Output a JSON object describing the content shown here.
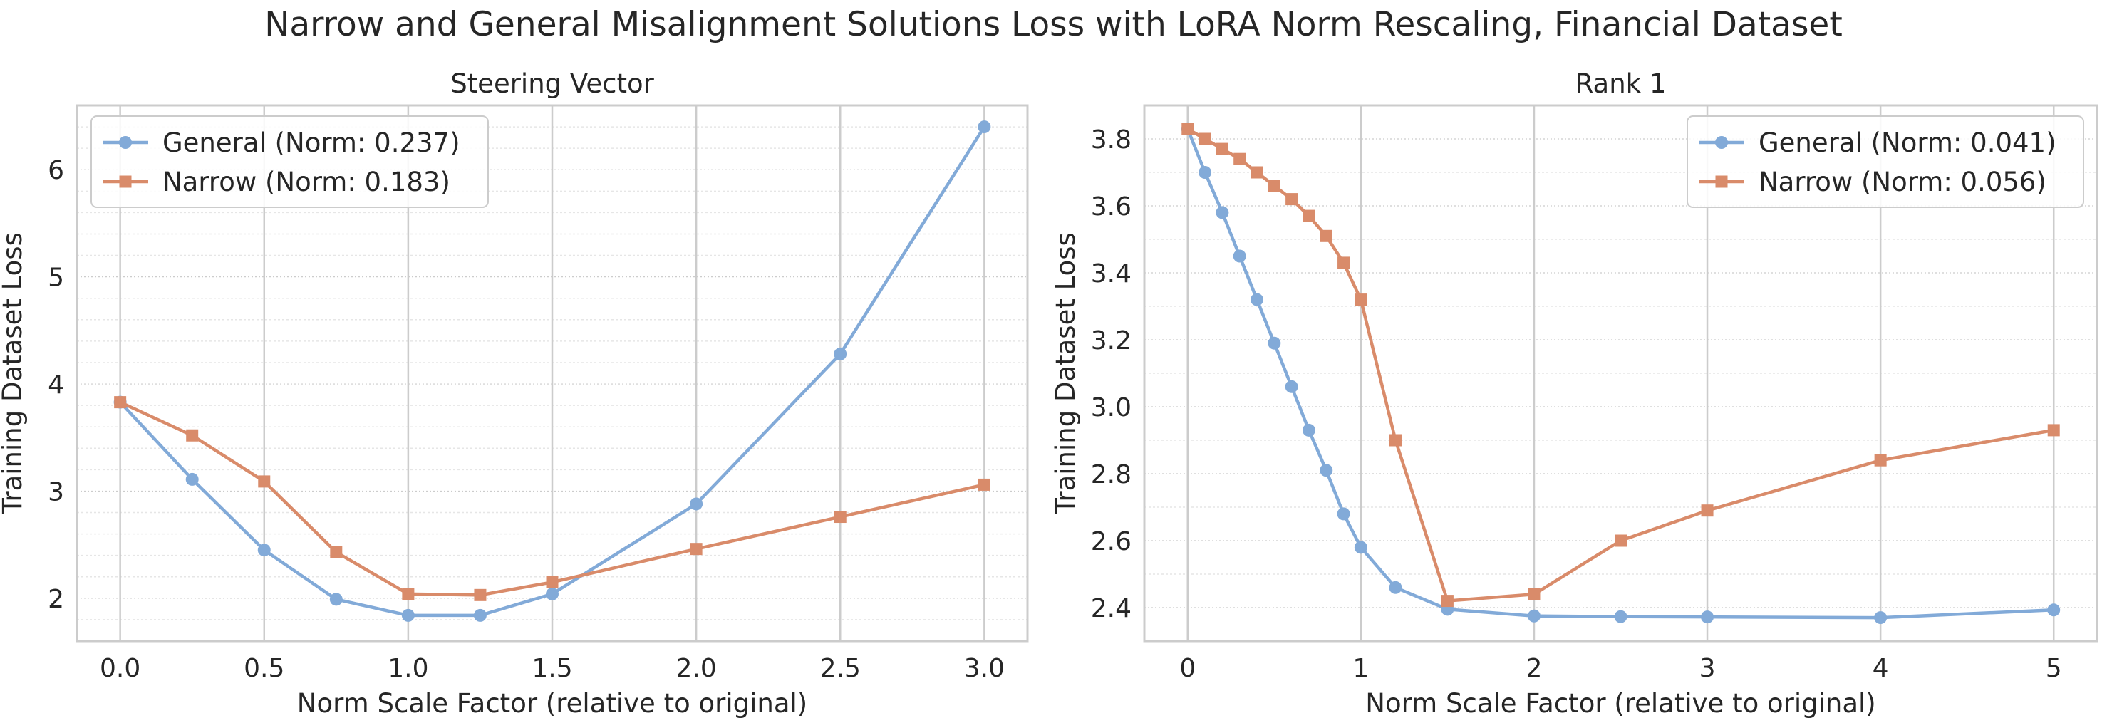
{
  "figure": {
    "title": "Narrow and General Misalignment Solutions Loss with LoRA Norm Rescaling, Financial Dataset"
  },
  "colors": {
    "general": "#82aad8",
    "narrow": "#d98b6a",
    "grid_major": "#cccccc",
    "grid_minor": "#e6e6e6",
    "frame": "#cccccc",
    "text": "#262626"
  },
  "chart_data": [
    {
      "type": "line",
      "title": "Steering Vector",
      "xlabel": "Norm Scale Factor (relative to original)",
      "ylabel": "Training Dataset Loss",
      "xlim": [
        -0.15,
        3.15
      ],
      "ylim": [
        1.6,
        6.6
      ],
      "xticks": [
        0.0,
        0.5,
        1.0,
        1.5,
        2.0,
        2.5,
        3.0
      ],
      "xtick_labels": [
        "0.0",
        "0.5",
        "1.0",
        "1.5",
        "2.0",
        "2.5",
        "3.0"
      ],
      "yticks": [
        2,
        3,
        4,
        5,
        6
      ],
      "ytick_labels": [
        "2",
        "3",
        "4",
        "5",
        "6"
      ],
      "ygrid_minor": [
        1.8,
        2.2,
        2.4,
        2.6,
        2.8,
        3.2,
        3.4,
        3.6,
        3.8,
        4.2,
        4.4,
        4.6,
        4.8,
        5.2,
        5.4,
        5.6,
        5.8,
        6.2,
        6.4
      ],
      "legend_position": "top-left",
      "series": [
        {
          "name": "General (Norm: 0.237)",
          "key": "general",
          "marker": "circle",
          "x": [
            0.0,
            0.25,
            0.5,
            0.75,
            1.0,
            1.25,
            1.5,
            2.0,
            2.5,
            3.0
          ],
          "y": [
            3.83,
            3.11,
            2.45,
            1.99,
            1.84,
            1.84,
            2.04,
            2.88,
            4.28,
            6.4
          ]
        },
        {
          "name": "Narrow (Norm: 0.183)",
          "key": "narrow",
          "marker": "square",
          "x": [
            0.0,
            0.25,
            0.5,
            0.75,
            1.0,
            1.25,
            1.5,
            2.0,
            2.5,
            3.0
          ],
          "y": [
            3.83,
            3.52,
            3.09,
            2.43,
            2.04,
            2.03,
            2.15,
            2.46,
            2.76,
            3.06
          ]
        }
      ]
    },
    {
      "type": "line",
      "title": "Rank 1",
      "xlabel": "Norm Scale Factor (relative to original)",
      "ylabel": "Training Dataset Loss",
      "xlim": [
        -0.25,
        5.25
      ],
      "ylim": [
        2.3,
        3.9
      ],
      "xticks": [
        0,
        1,
        2,
        3,
        4,
        5
      ],
      "xtick_labels": [
        "0",
        "1",
        "2",
        "3",
        "4",
        "5"
      ],
      "yticks": [
        2.4,
        2.6,
        2.8,
        3.0,
        3.2,
        3.4,
        3.6,
        3.8
      ],
      "ytick_labels": [
        "2.4",
        "2.6",
        "2.8",
        "3.0",
        "3.2",
        "3.4",
        "3.6",
        "3.8"
      ],
      "ygrid_minor": [
        2.5,
        2.7,
        2.9,
        3.1,
        3.3,
        3.5,
        3.7
      ],
      "legend_position": "top-right",
      "series": [
        {
          "name": "General (Norm: 0.041)",
          "key": "general",
          "marker": "circle",
          "x": [
            0.0,
            0.1,
            0.2,
            0.3,
            0.4,
            0.5,
            0.6,
            0.7,
            0.8,
            0.9,
            1.0,
            1.2,
            1.5,
            2.0,
            2.5,
            3.0,
            4.0,
            5.0
          ],
          "y": [
            3.83,
            3.7,
            3.58,
            3.45,
            3.32,
            3.19,
            3.06,
            2.93,
            2.81,
            2.68,
            2.58,
            2.46,
            2.395,
            2.375,
            2.373,
            2.372,
            2.37,
            2.393
          ]
        },
        {
          "name": "Narrow (Norm: 0.056)",
          "key": "narrow",
          "marker": "square",
          "x": [
            0.0,
            0.1,
            0.2,
            0.3,
            0.4,
            0.5,
            0.6,
            0.7,
            0.8,
            0.9,
            1.0,
            1.2,
            1.5,
            2.0,
            2.5,
            3.0,
            4.0,
            5.0
          ],
          "y": [
            3.83,
            3.8,
            3.77,
            3.74,
            3.7,
            3.66,
            3.62,
            3.57,
            3.51,
            3.43,
            3.32,
            2.9,
            2.42,
            2.44,
            2.6,
            2.69,
            2.84,
            2.93
          ]
        }
      ]
    }
  ]
}
